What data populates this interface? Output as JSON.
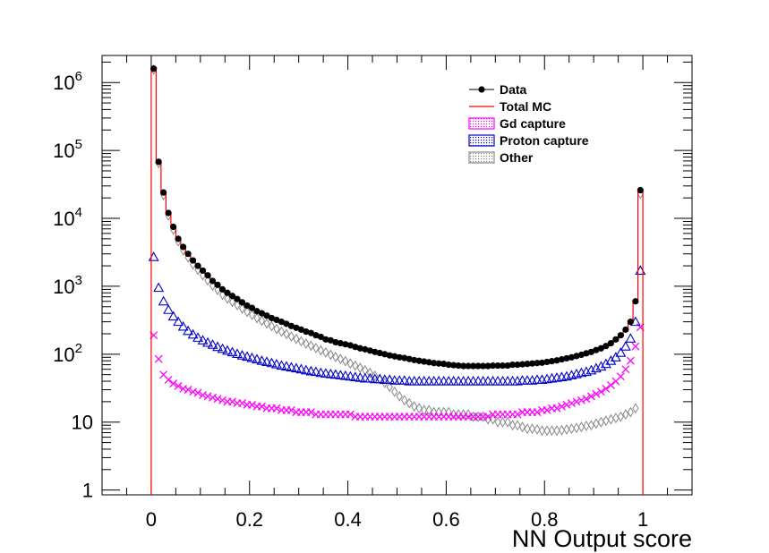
{
  "chart_data": {
    "type": "scatter",
    "title": "",
    "xlabel": "NN Output score",
    "ylabel": "",
    "xlim": [
      -0.1,
      1.1
    ],
    "ylim": [
      0.85,
      2500000
    ],
    "yscale": "log",
    "x_ticks": [
      {
        "value": 0,
        "label": "0"
      },
      {
        "value": 0.2,
        "label": "0.2"
      },
      {
        "value": 0.4,
        "label": "0.4"
      },
      {
        "value": 0.6,
        "label": "0.6"
      },
      {
        "value": 0.8,
        "label": "0.8"
      },
      {
        "value": 1,
        "label": "1"
      }
    ],
    "y_ticks": [
      {
        "value": 1,
        "base": "1",
        "exp": ""
      },
      {
        "value": 10,
        "base": "10",
        "exp": ""
      },
      {
        "value": 100,
        "base": "10",
        "exp": "2"
      },
      {
        "value": 1000,
        "base": "10",
        "exp": "3"
      },
      {
        "value": 10000,
        "base": "10",
        "exp": "4"
      },
      {
        "value": 100000,
        "base": "10",
        "exp": "5"
      },
      {
        "value": 1000000,
        "base": "10",
        "exp": "6"
      }
    ],
    "legend": {
      "position": "top-right",
      "entries": [
        {
          "label": "Data",
          "marker": "dot",
          "color": "#000000"
        },
        {
          "label": "Total MC",
          "marker": "line",
          "color": "#ff0000"
        },
        {
          "label": "Gd capture",
          "marker": "box",
          "color": "#ff00ff"
        },
        {
          "label": "Proton capture",
          "marker": "box",
          "color": "#0000cc"
        },
        {
          "label": "Other",
          "marker": "box",
          "color": "#888888"
        }
      ]
    },
    "x": [
      0.005,
      0.015,
      0.025,
      0.035,
      0.045,
      0.055,
      0.065,
      0.075,
      0.085,
      0.095,
      0.105,
      0.115,
      0.125,
      0.135,
      0.145,
      0.155,
      0.165,
      0.175,
      0.185,
      0.195,
      0.205,
      0.215,
      0.225,
      0.235,
      0.245,
      0.255,
      0.265,
      0.275,
      0.285,
      0.295,
      0.305,
      0.315,
      0.325,
      0.335,
      0.345,
      0.355,
      0.365,
      0.375,
      0.385,
      0.395,
      0.405,
      0.415,
      0.425,
      0.435,
      0.445,
      0.455,
      0.465,
      0.475,
      0.485,
      0.495,
      0.505,
      0.515,
      0.525,
      0.535,
      0.545,
      0.555,
      0.565,
      0.575,
      0.585,
      0.595,
      0.605,
      0.615,
      0.625,
      0.635,
      0.645,
      0.655,
      0.665,
      0.675,
      0.685,
      0.695,
      0.705,
      0.715,
      0.725,
      0.735,
      0.745,
      0.755,
      0.765,
      0.775,
      0.785,
      0.795,
      0.805,
      0.815,
      0.825,
      0.835,
      0.845,
      0.855,
      0.865,
      0.875,
      0.885,
      0.895,
      0.905,
      0.915,
      0.925,
      0.935,
      0.945,
      0.955,
      0.965,
      0.975,
      0.985,
      0.995
    ],
    "series": [
      {
        "name": "Data",
        "color": "#000000",
        "marker": "dot",
        "values": [
          1600000,
          68000,
          24000,
          12000,
          7500,
          5000,
          3800,
          3000,
          2400,
          2000,
          1700,
          1450,
          1200,
          1050,
          900,
          800,
          720,
          650,
          580,
          520,
          480,
          430,
          400,
          370,
          340,
          320,
          300,
          280,
          260,
          245,
          230,
          215,
          205,
          190,
          180,
          165,
          160,
          150,
          145,
          140,
          135,
          128,
          122,
          118,
          113,
          108,
          104,
          100,
          96,
          93,
          90,
          88,
          85,
          82,
          80,
          78,
          76,
          74,
          73,
          72,
          70,
          69,
          68,
          67,
          67,
          67,
          67,
          67,
          67,
          68,
          68,
          68,
          68,
          70,
          70,
          71,
          72,
          73,
          74,
          75,
          77,
          79,
          81,
          84,
          87,
          90,
          94,
          98,
          103,
          108,
          115,
          122,
          132,
          145,
          165,
          190,
          230,
          300,
          600,
          26000
        ]
      },
      {
        "name": "Total MC",
        "color": "#ff0000",
        "marker": "step",
        "values": [
          1550000,
          66000,
          23000,
          11500,
          7200,
          4900,
          3700,
          2900,
          2350,
          1950,
          1650,
          1400,
          1180,
          1020,
          880,
          780,
          700,
          630,
          565,
          510,
          465,
          420,
          390,
          360,
          335,
          310,
          290,
          272,
          255,
          240,
          225,
          210,
          200,
          186,
          176,
          164,
          156,
          148,
          142,
          136,
          130,
          124,
          118,
          114,
          110,
          105,
          101,
          97,
          94,
          91,
          88,
          86,
          83,
          80,
          78,
          76,
          74,
          72,
          71,
          70,
          69,
          68,
          67,
          66,
          66,
          66,
          66,
          66,
          66,
          66,
          67,
          67,
          67,
          68,
          69,
          70,
          71,
          72,
          73,
          74,
          76,
          78,
          80,
          82,
          85,
          88,
          92,
          96,
          100,
          106,
          112,
          120,
          130,
          142,
          160,
          185,
          225,
          290,
          580,
          25000
        ]
      },
      {
        "name": "Gd capture",
        "color": "#ff00ff",
        "marker": "x",
        "values": [
          190,
          85,
          50,
          42,
          37,
          34,
          31,
          30,
          28,
          27,
          25,
          24,
          23,
          22,
          21,
          20,
          20,
          19,
          19,
          18,
          18,
          17,
          17,
          16,
          16,
          16,
          15,
          15,
          15,
          14,
          14,
          14,
          14,
          13,
          13,
          13,
          13,
          13,
          13,
          13,
          13,
          12,
          12,
          12,
          12,
          12,
          12,
          12,
          12,
          12,
          12,
          12,
          12,
          12,
          12,
          12,
          12,
          12,
          12,
          12,
          12,
          12,
          12,
          12,
          12,
          12,
          12,
          12,
          12,
          13,
          13,
          13,
          13,
          13,
          13,
          14,
          14,
          14,
          14,
          15,
          15,
          16,
          16,
          17,
          18,
          19,
          20,
          21,
          22,
          24,
          26,
          28,
          31,
          35,
          40,
          47,
          60,
          80,
          130,
          250
        ]
      },
      {
        "name": "Proton capture",
        "color": "#0000cc",
        "marker": "triangle",
        "values": [
          2700,
          950,
          600,
          450,
          360,
          300,
          255,
          220,
          195,
          175,
          160,
          148,
          138,
          128,
          120,
          113,
          107,
          101,
          96,
          92,
          88,
          84,
          80,
          77,
          74,
          71,
          68,
          66,
          64,
          62,
          60,
          58,
          56,
          55,
          53,
          52,
          51,
          50,
          49,
          48,
          47,
          46,
          45,
          44,
          44,
          43,
          43,
          42,
          42,
          41,
          41,
          41,
          40,
          40,
          40,
          40,
          40,
          40,
          40,
          40,
          40,
          40,
          40,
          40,
          40,
          40,
          40,
          40,
          40,
          40,
          40,
          40,
          40,
          40,
          40,
          41,
          41,
          41,
          42,
          42,
          43,
          44,
          45,
          46,
          47,
          49,
          51,
          53,
          55,
          58,
          62,
          66,
          72,
          80,
          90,
          105,
          130,
          170,
          300,
          1700
        ]
      },
      {
        "name": "Other",
        "color": "#888888",
        "marker": "diamond",
        "values": [
          1550000,
          65000,
          22000,
          11000,
          6800,
          4600,
          3400,
          2650,
          2100,
          1750,
          1450,
          1220,
          1020,
          880,
          750,
          660,
          590,
          530,
          470,
          420,
          380,
          340,
          310,
          283,
          258,
          235,
          215,
          198,
          182,
          168,
          155,
          143,
          133,
          123,
          114,
          106,
          98,
          91,
          85,
          79,
          73,
          68,
          63,
          58,
          53,
          48,
          43,
          38,
          33,
          28,
          24,
          21,
          19,
          17,
          16,
          15,
          15,
          14,
          14,
          14,
          14,
          13,
          13,
          13,
          13,
          12,
          12,
          12,
          11,
          11,
          10,
          10,
          10,
          9,
          9,
          8.5,
          8,
          8,
          7.8,
          7.5,
          7.5,
          7.5,
          7.5,
          7.6,
          7.8,
          8,
          8.2,
          8.5,
          8.8,
          9,
          9.5,
          10,
          10.5,
          11,
          11.5,
          12,
          13,
          14,
          16,
          23000
        ]
      }
    ]
  }
}
